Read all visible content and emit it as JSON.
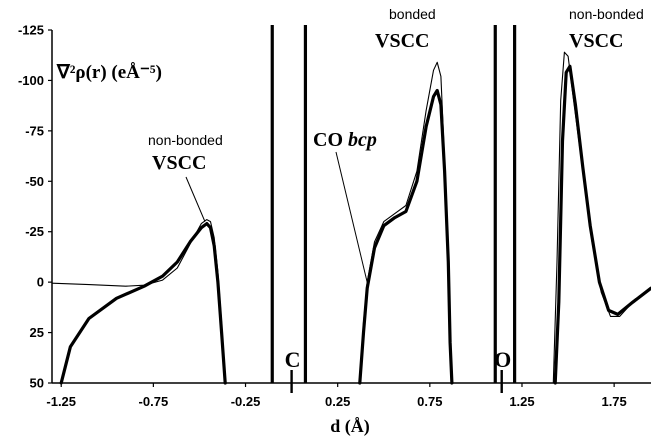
{
  "chart_data": {
    "type": "line",
    "title": "",
    "xlabel": "d (Å)",
    "ylabel": "∇²ρ(r) (eÅ⁻⁵)",
    "xlim": [
      -1.3,
      1.95
    ],
    "ylim": [
      50,
      -125
    ],
    "y_axis_inverted": true,
    "grid": false,
    "xticks": [
      -1.25,
      -0.75,
      -0.25,
      0.25,
      0.75,
      1.25,
      1.75
    ],
    "xtick_labels": [
      "-1.25",
      "-0.75",
      "-0.25",
      "0.25",
      "0.75",
      "1.25",
      "1.75"
    ],
    "yticks": [
      -125,
      -100,
      -75,
      -50,
      -25,
      0,
      25,
      50
    ],
    "ytick_labels": [
      "-125",
      "-100",
      "-75",
      "-50",
      "-25",
      "0",
      "25",
      "50"
    ],
    "series": [
      {
        "style": "thin",
        "segments": [
          [
            [
              -1.3,
              0.5
            ],
            [
              -1.1,
              1.2
            ],
            [
              -0.9,
              2.0
            ],
            [
              -0.8,
              1.5
            ],
            [
              -0.7,
              -1
            ],
            [
              -0.62,
              -7
            ],
            [
              -0.55,
              -19
            ],
            [
              -0.49,
              -29
            ],
            [
              -0.46,
              -31
            ],
            [
              -0.44,
              -30
            ],
            [
              -0.42,
              -22
            ],
            [
              -0.4,
              -5
            ],
            [
              -0.38,
              20
            ],
            [
              -0.36,
              50
            ]
          ],
          [
            [
              0.37,
              50
            ],
            [
              0.39,
              20
            ],
            [
              0.41,
              0
            ],
            [
              0.45,
              -20
            ],
            [
              0.5,
              -30
            ],
            [
              0.56,
              -34
            ],
            [
              0.62,
              -38
            ],
            [
              0.68,
              -55
            ],
            [
              0.73,
              -85
            ],
            [
              0.77,
              -105
            ],
            [
              0.79,
              -109
            ],
            [
              0.81,
              -102
            ],
            [
              0.83,
              -60
            ],
            [
              0.85,
              -10
            ],
            [
              0.86,
              30
            ],
            [
              0.87,
              50
            ]
          ],
          [
            [
              1.42,
              50
            ],
            [
              1.44,
              -10
            ],
            [
              1.46,
              -90
            ],
            [
              1.48,
              -114
            ],
            [
              1.5,
              -112
            ],
            [
              1.53,
              -90
            ],
            [
              1.58,
              -55
            ],
            [
              1.63,
              -20
            ],
            [
              1.68,
              5
            ],
            [
              1.73,
              17
            ],
            [
              1.78,
              17
            ],
            [
              1.85,
              10
            ],
            [
              1.95,
              3
            ]
          ]
        ]
      },
      {
        "style": "thick",
        "segments": [
          [
            [
              -1.25,
              50
            ],
            [
              -1.2,
              32
            ],
            [
              -1.1,
              18
            ],
            [
              -0.95,
              8
            ],
            [
              -0.8,
              2
            ],
            [
              -0.7,
              -3
            ],
            [
              -0.62,
              -10
            ],
            [
              -0.55,
              -20
            ],
            [
              -0.49,
              -27
            ],
            [
              -0.46,
              -29
            ],
            [
              -0.44,
              -27
            ],
            [
              -0.42,
              -18
            ],
            [
              -0.4,
              0
            ],
            [
              -0.38,
              25
            ],
            [
              -0.36,
              50
            ]
          ],
          [
            [
              0.37,
              50
            ],
            [
              0.39,
              25
            ],
            [
              0.41,
              3
            ],
            [
              0.45,
              -17
            ],
            [
              0.5,
              -28
            ],
            [
              0.56,
              -32
            ],
            [
              0.62,
              -35
            ],
            [
              0.68,
              -50
            ],
            [
              0.73,
              -77
            ],
            [
              0.77,
              -92
            ],
            [
              0.79,
              -95
            ],
            [
              0.81,
              -88
            ],
            [
              0.83,
              -55
            ],
            [
              0.85,
              -10
            ],
            [
              0.86,
              30
            ],
            [
              0.87,
              50
            ]
          ],
          [
            [
              1.43,
              50
            ],
            [
              1.45,
              10
            ],
            [
              1.47,
              -70
            ],
            [
              1.49,
              -104
            ],
            [
              1.51,
              -107
            ],
            [
              1.54,
              -88
            ],
            [
              1.58,
              -57
            ],
            [
              1.62,
              -28
            ],
            [
              1.67,
              0
            ],
            [
              1.72,
              14
            ],
            [
              1.77,
              16
            ],
            [
              1.85,
              10
            ],
            [
              1.95,
              3
            ]
          ]
        ]
      }
    ],
    "vertical_lines_x": [
      -0.105,
      0.075,
      1.105,
      1.21
    ],
    "atom_markers": [
      {
        "label": "C",
        "x": 0.0
      },
      {
        "label": "O",
        "x": 1.14
      }
    ],
    "annotations": [
      {
        "small": "non-bonded",
        "big": "VSCC",
        "at_x": -0.47,
        "at_y": -30
      },
      {
        "small": "bonded",
        "big": "VSCC",
        "at_x": 0.79,
        "at_y": -108
      },
      {
        "small": "non-bonded",
        "big": "VSCC",
        "at_x": 1.5,
        "at_y": -114
      },
      {
        "big": "CO",
        "big_italic": "bcp",
        "at_x": 0.41,
        "at_y": 0
      }
    ]
  }
}
